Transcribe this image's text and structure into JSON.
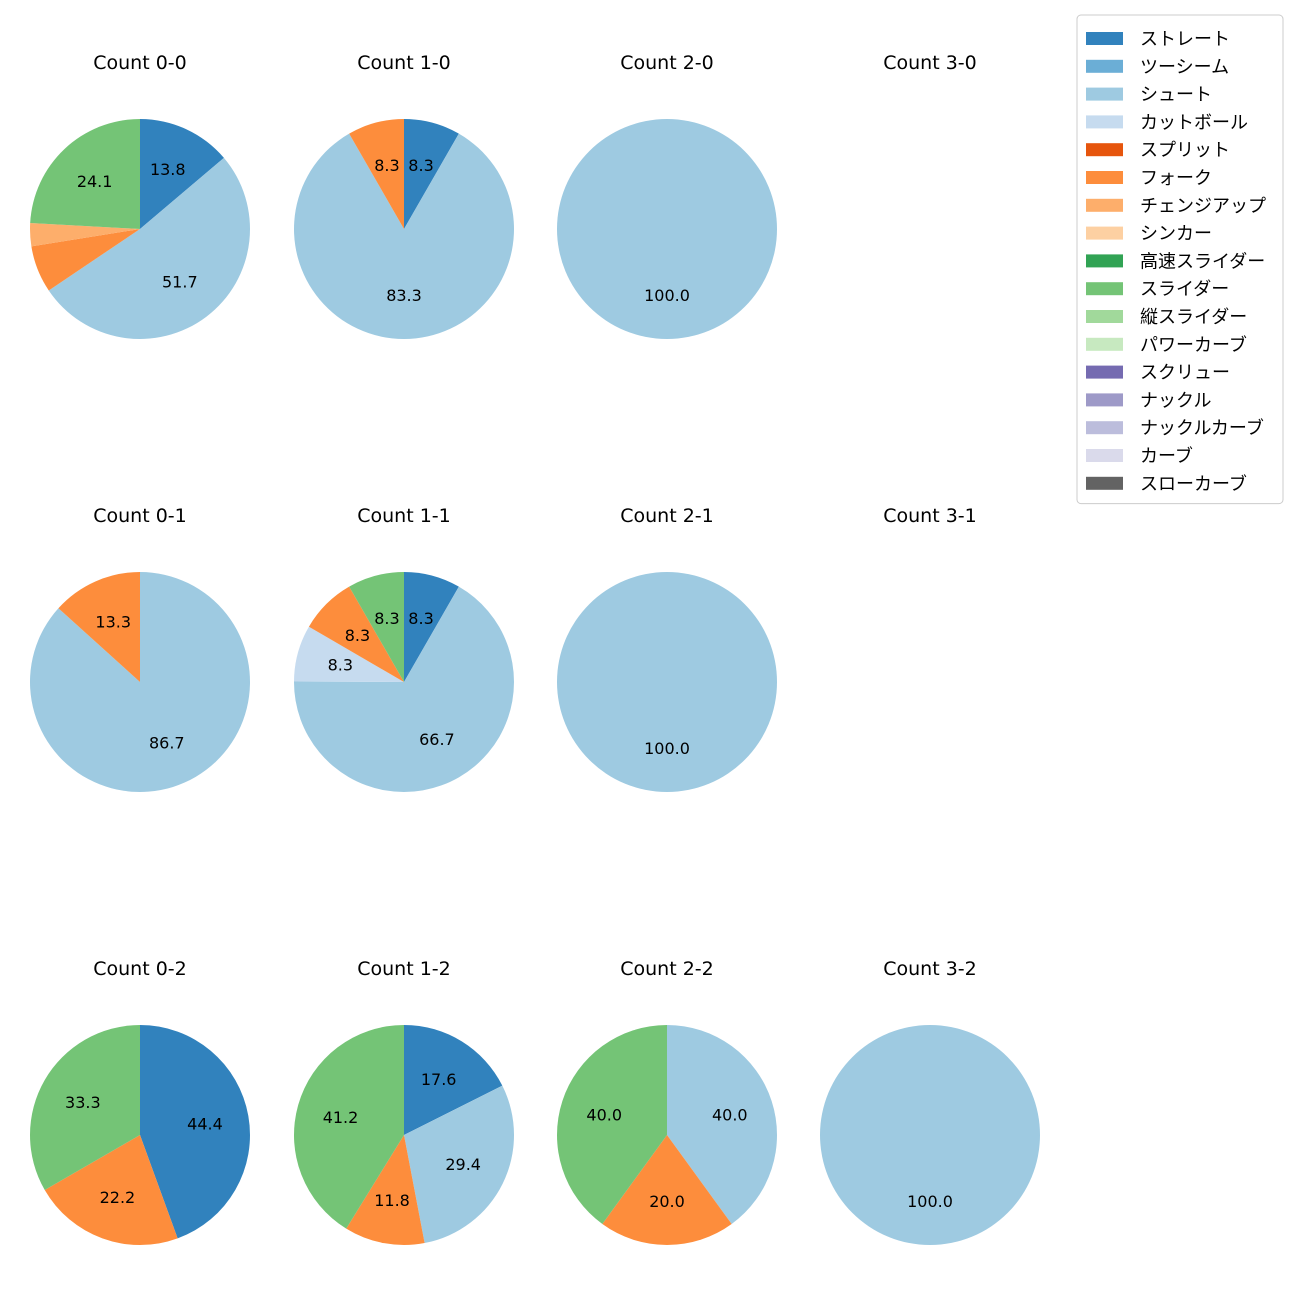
{
  "chart_data": {
    "type": "pie",
    "legend": {
      "placement": "top-right",
      "entries": [
        {
          "name": "ストレート",
          "color": "#3182bd"
        },
        {
          "name": "ツーシーム",
          "color": "#6baed6"
        },
        {
          "name": "シュート",
          "color": "#9ecae1"
        },
        {
          "name": "カットボール",
          "color": "#c6dbef"
        },
        {
          "name": "スプリット",
          "color": "#e6550d"
        },
        {
          "name": "フォーク",
          "color": "#fd8d3c"
        },
        {
          "name": "チェンジアップ",
          "color": "#fdae6b"
        },
        {
          "name": "シンカー",
          "color": "#fdd0a2"
        },
        {
          "name": "高速スライダー",
          "color": "#31a354"
        },
        {
          "name": "スライダー",
          "color": "#74c476"
        },
        {
          "name": "縦スライダー",
          "color": "#a1d99b"
        },
        {
          "name": "パワーカーブ",
          "color": "#c7e9c0"
        },
        {
          "name": "スクリュー",
          "color": "#756bb1"
        },
        {
          "name": "ナックル",
          "color": "#9e9ac8"
        },
        {
          "name": "ナックルカーブ",
          "color": "#bcbddc"
        },
        {
          "name": "カーブ",
          "color": "#dadaeb"
        },
        {
          "name": "スローカーブ",
          "color": "#636363"
        }
      ]
    },
    "panels": [
      {
        "title": "Count 0-0",
        "slices": [
          {
            "pitch": "ストレート",
            "value": 13.8
          },
          {
            "pitch": "シュート",
            "value": 51.7
          },
          {
            "pitch": "フォーク",
            "value": 6.9,
            "label": ""
          },
          {
            "pitch": "チェンジアップ",
            "value": 3.4,
            "label": ""
          },
          {
            "pitch": "スライダー",
            "value": 24.1
          }
        ]
      },
      {
        "title": "Count 1-0",
        "slices": [
          {
            "pitch": "ストレート",
            "value": 8.3
          },
          {
            "pitch": "シュート",
            "value": 83.3
          },
          {
            "pitch": "フォーク",
            "value": 8.3
          }
        ]
      },
      {
        "title": "Count 2-0",
        "slices": [
          {
            "pitch": "シュート",
            "value": 100.0
          }
        ]
      },
      {
        "title": "Count 3-0",
        "slices": []
      },
      {
        "title": "Count 0-1",
        "slices": [
          {
            "pitch": "シュート",
            "value": 86.7
          },
          {
            "pitch": "フォーク",
            "value": 13.3
          }
        ]
      },
      {
        "title": "Count 1-1",
        "slices": [
          {
            "pitch": "ストレート",
            "value": 8.3
          },
          {
            "pitch": "シュート",
            "value": 66.7
          },
          {
            "pitch": "カットボール",
            "value": 8.3
          },
          {
            "pitch": "フォーク",
            "value": 8.3
          },
          {
            "pitch": "スライダー",
            "value": 8.3
          }
        ]
      },
      {
        "title": "Count 2-1",
        "slices": [
          {
            "pitch": "シュート",
            "value": 100.0
          }
        ]
      },
      {
        "title": "Count 3-1",
        "slices": []
      },
      {
        "title": "Count 0-2",
        "slices": [
          {
            "pitch": "ストレート",
            "value": 44.4
          },
          {
            "pitch": "フォーク",
            "value": 22.2
          },
          {
            "pitch": "スライダー",
            "value": 33.3
          }
        ]
      },
      {
        "title": "Count 1-2",
        "slices": [
          {
            "pitch": "ストレート",
            "value": 17.6
          },
          {
            "pitch": "シュート",
            "value": 29.4
          },
          {
            "pitch": "フォーク",
            "value": 11.8
          },
          {
            "pitch": "スライダー",
            "value": 41.2
          }
        ]
      },
      {
        "title": "Count 2-2",
        "slices": [
          {
            "pitch": "シュート",
            "value": 40.0
          },
          {
            "pitch": "フォーク",
            "value": 20.0
          },
          {
            "pitch": "スライダー",
            "value": 40.0
          }
        ]
      },
      {
        "title": "Count 3-2",
        "slices": [
          {
            "pitch": "シュート",
            "value": 100.0
          }
        ]
      }
    ]
  }
}
